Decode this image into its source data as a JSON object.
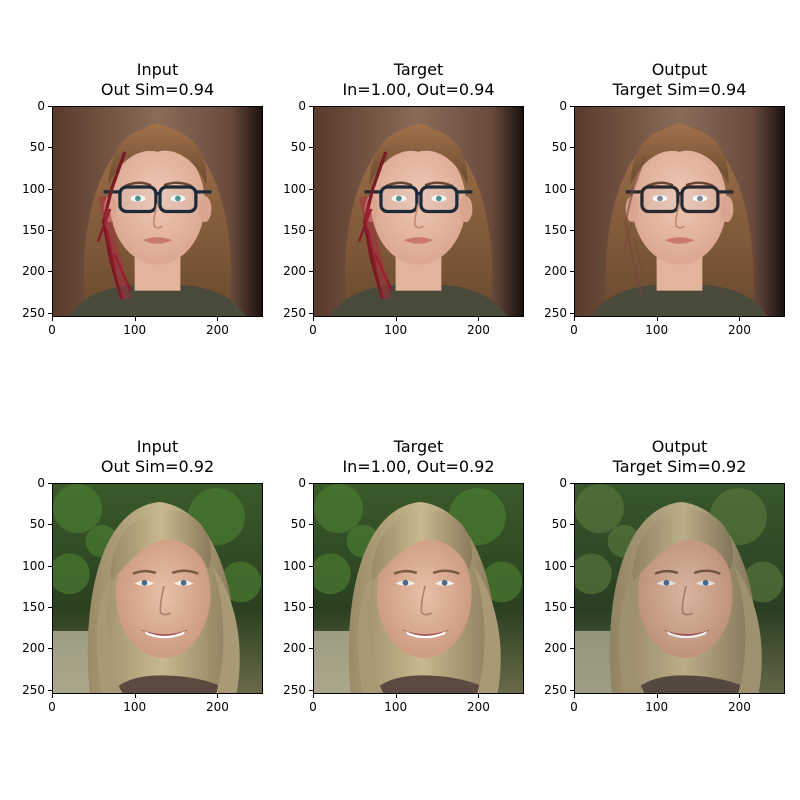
{
  "figure": {
    "panels": [
      {
        "id": "r1c1",
        "title_line1": "Input",
        "title_line2": "Out Sim=0.94",
        "subject": "face-glasses-scar",
        "variant": "input"
      },
      {
        "id": "r1c2",
        "title_line1": "Target",
        "title_line2": "In=1.00, Out=0.94",
        "subject": "face-glasses-scar",
        "variant": "target"
      },
      {
        "id": "r1c3",
        "title_line1": "Output",
        "title_line2": "Target Sim=0.94",
        "subject": "face-glasses-scar",
        "variant": "output"
      },
      {
        "id": "r2c1",
        "title_line1": "Input",
        "title_line2": "Out Sim=0.92",
        "subject": "face-blonde-smile",
        "variant": "input"
      },
      {
        "id": "r2c2",
        "title_line1": "Target",
        "title_line2": "In=1.00, Out=0.92",
        "subject": "face-blonde-smile",
        "variant": "target"
      },
      {
        "id": "r2c3",
        "title_line1": "Output",
        "title_line2": "Target Sim=0.92",
        "subject": "face-blonde-smile",
        "variant": "output"
      }
    ]
  },
  "chart_data": {
    "type": "image-grid",
    "rows": 2,
    "cols": 3,
    "xlim": [
      0,
      255
    ],
    "ylim": [
      255,
      0
    ],
    "x_ticks": [
      "0",
      "100",
      "200"
    ],
    "y_ticks": [
      "0",
      "50",
      "100",
      "150",
      "200",
      "250"
    ],
    "x_tick_values": [
      0,
      100,
      200
    ],
    "y_tick_values": [
      0,
      50,
      100,
      150,
      200,
      250
    ]
  }
}
